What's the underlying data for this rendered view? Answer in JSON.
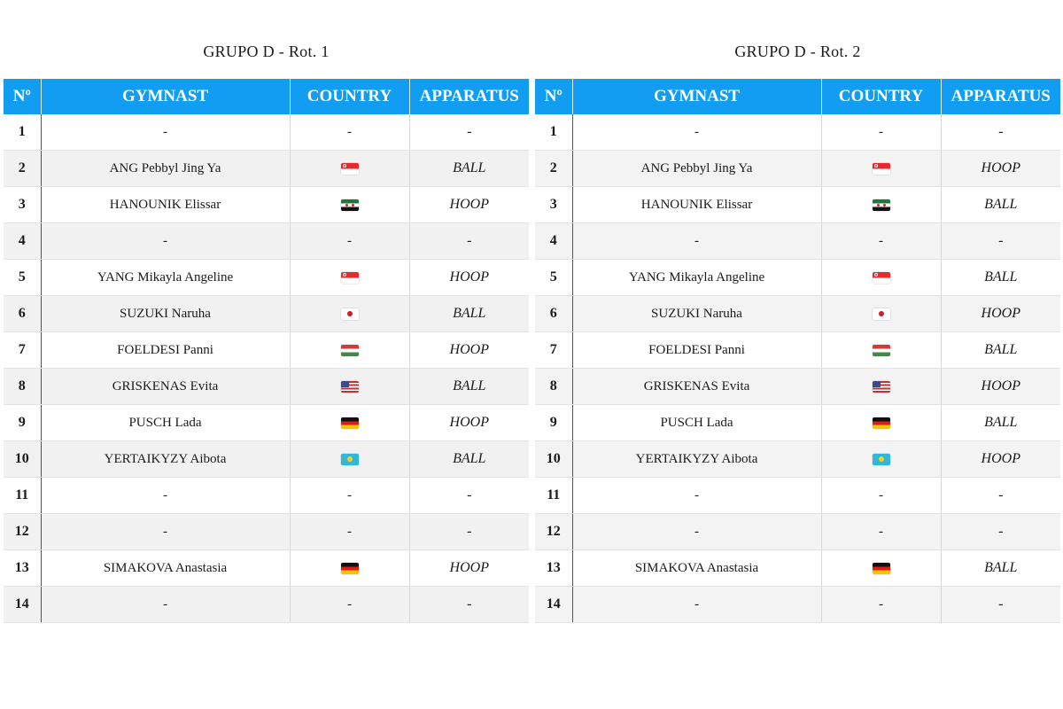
{
  "columns": {
    "no": "Nº",
    "gymnast": "GYMNAST",
    "country": "COUNTRY",
    "apparatus": "APPARATUS"
  },
  "flag_icons": {
    "sgp": "singapore-flag-icon",
    "syr": "syria-flag-icon",
    "jpn": "japan-flag-icon",
    "hun": "hungary-flag-icon",
    "usa": "usa-flag-icon",
    "deu": "germany-flag-icon",
    "kaz": "kazakhstan-flag-icon"
  },
  "colors": {
    "header_bg": "#119ef2",
    "header_text": "#ffffff"
  },
  "rotations": [
    {
      "title": "GRUPO D - Rot. 1",
      "rows": [
        {
          "no": "1",
          "gymnast": "-",
          "country": "-",
          "flag": "",
          "apparatus": "-"
        },
        {
          "no": "2",
          "gymnast": "ANG Pebbyl Jing Ya",
          "country": "",
          "flag": "sgp",
          "apparatus": "BALL"
        },
        {
          "no": "3",
          "gymnast": "HANOUNIK Elissar",
          "country": "",
          "flag": "syr",
          "apparatus": "HOOP"
        },
        {
          "no": "4",
          "gymnast": "-",
          "country": "-",
          "flag": "",
          "apparatus": "-"
        },
        {
          "no": "5",
          "gymnast": "YANG Mikayla Angeline",
          "country": "",
          "flag": "sgp",
          "apparatus": "HOOP"
        },
        {
          "no": "6",
          "gymnast": "SUZUKI Naruha",
          "country": "",
          "flag": "jpn",
          "apparatus": "BALL"
        },
        {
          "no": "7",
          "gymnast": "FOELDESI Panni",
          "country": "",
          "flag": "hun",
          "apparatus": "HOOP"
        },
        {
          "no": "8",
          "gymnast": "GRISKENAS Evita",
          "country": "",
          "flag": "usa",
          "apparatus": "BALL"
        },
        {
          "no": "9",
          "gymnast": "PUSCH Lada",
          "country": "",
          "flag": "deu",
          "apparatus": "HOOP"
        },
        {
          "no": "10",
          "gymnast": "YERTAIKYZY Aibota",
          "country": "",
          "flag": "kaz",
          "apparatus": "BALL"
        },
        {
          "no": "11",
          "gymnast": "-",
          "country": "-",
          "flag": "",
          "apparatus": "-"
        },
        {
          "no": "12",
          "gymnast": "-",
          "country": "-",
          "flag": "",
          "apparatus": "-"
        },
        {
          "no": "13",
          "gymnast": "SIMAKOVA Anastasia",
          "country": "",
          "flag": "deu",
          "apparatus": "HOOP"
        },
        {
          "no": "14",
          "gymnast": "-",
          "country": "-",
          "flag": "",
          "apparatus": "-"
        }
      ]
    },
    {
      "title": "GRUPO D - Rot. 2",
      "rows": [
        {
          "no": "1",
          "gymnast": "-",
          "country": "-",
          "flag": "",
          "apparatus": "-"
        },
        {
          "no": "2",
          "gymnast": "ANG Pebbyl Jing Ya",
          "country": "",
          "flag": "sgp",
          "apparatus": "HOOP"
        },
        {
          "no": "3",
          "gymnast": "HANOUNIK Elissar",
          "country": "",
          "flag": "syr",
          "apparatus": "BALL"
        },
        {
          "no": "4",
          "gymnast": "-",
          "country": "-",
          "flag": "",
          "apparatus": "-"
        },
        {
          "no": "5",
          "gymnast": "YANG Mikayla Angeline",
          "country": "",
          "flag": "sgp",
          "apparatus": "BALL"
        },
        {
          "no": "6",
          "gymnast": "SUZUKI Naruha",
          "country": "",
          "flag": "jpn",
          "apparatus": "HOOP"
        },
        {
          "no": "7",
          "gymnast": "FOELDESI Panni",
          "country": "",
          "flag": "hun",
          "apparatus": "BALL"
        },
        {
          "no": "8",
          "gymnast": "GRISKENAS Evita",
          "country": "",
          "flag": "usa",
          "apparatus": "HOOP"
        },
        {
          "no": "9",
          "gymnast": "PUSCH Lada",
          "country": "",
          "flag": "deu",
          "apparatus": "BALL"
        },
        {
          "no": "10",
          "gymnast": "YERTAIKYZY Aibota",
          "country": "",
          "flag": "kaz",
          "apparatus": "HOOP"
        },
        {
          "no": "11",
          "gymnast": "-",
          "country": "-",
          "flag": "",
          "apparatus": "-"
        },
        {
          "no": "12",
          "gymnast": "-",
          "country": "-",
          "flag": "",
          "apparatus": "-"
        },
        {
          "no": "13",
          "gymnast": "SIMAKOVA Anastasia",
          "country": "",
          "flag": "deu",
          "apparatus": "BALL"
        },
        {
          "no": "14",
          "gymnast": "-",
          "country": "-",
          "flag": "",
          "apparatus": "-"
        }
      ]
    }
  ]
}
